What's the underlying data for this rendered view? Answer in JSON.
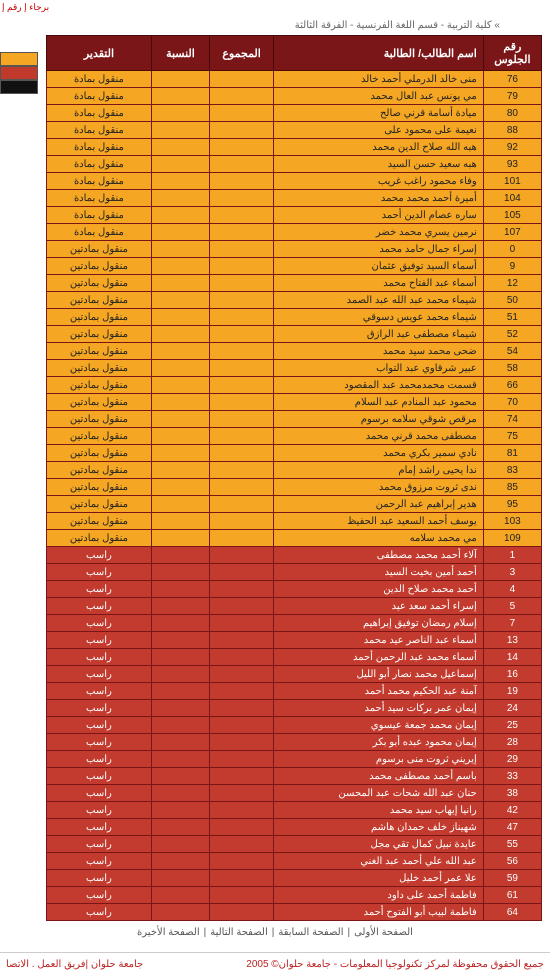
{
  "topLeft": "برجاء إ\nرقم إ",
  "breadcrumb": "» كلية التربية - قسم اللغة الفرنسية - الفرقة الثالثة",
  "headers": {
    "seat": "رقم الجلوس",
    "name": "اسم الطالب/ الطالبة",
    "total": "المجموع",
    "pct": "النسبة",
    "grade": "التقدير"
  },
  "rows": [
    {
      "c": "orange",
      "seat": "76",
      "name": "منى خالد الدرملي أحمد خالد",
      "grade": "منقول بمادة"
    },
    {
      "c": "orange",
      "seat": "79",
      "name": "مي يونس عبد العال محمد",
      "grade": "منقول بمادة"
    },
    {
      "c": "orange",
      "seat": "80",
      "name": "ميادة أسامة قرني صالح",
      "grade": "منقول بمادة"
    },
    {
      "c": "orange",
      "seat": "88",
      "name": "نعيمة على محمود على",
      "grade": "منقول بمادة"
    },
    {
      "c": "orange",
      "seat": "92",
      "name": "هبه الله صلاح الدين محمد",
      "grade": "منقول بمادة"
    },
    {
      "c": "orange",
      "seat": "93",
      "name": "هبه سعيد حسن السيد",
      "grade": "منقول بمادة"
    },
    {
      "c": "orange",
      "seat": "101",
      "name": "وفاء محمود راغب غريب",
      "grade": "منقول بمادة"
    },
    {
      "c": "orange",
      "seat": "104",
      "name": "أميرة أحمد محمد محمد",
      "grade": "منقول بمادة"
    },
    {
      "c": "orange",
      "seat": "105",
      "name": "ساره عصام الدين أحمد",
      "grade": "منقول بمادة"
    },
    {
      "c": "orange",
      "seat": "107",
      "name": "نرمين يسري محمد خضر",
      "grade": "منقول بمادة"
    },
    {
      "c": "orange",
      "seat": "0",
      "name": "إسراء جمال حامد محمد",
      "grade": "منقول بمادتين"
    },
    {
      "c": "orange",
      "seat": "9",
      "name": "أسماء السيد توفيق عثمان",
      "grade": "منقول بمادتين"
    },
    {
      "c": "orange",
      "seat": "12",
      "name": "أسماء عبد الفتاح محمد",
      "grade": "منقول بمادتين"
    },
    {
      "c": "orange",
      "seat": "50",
      "name": "شيماء محمد عبد الله عبد الصمد",
      "grade": "منقول بمادتين"
    },
    {
      "c": "orange",
      "seat": "51",
      "name": "شيماء محمد عويس دسوقي",
      "grade": "منقول بمادتين"
    },
    {
      "c": "orange",
      "seat": "52",
      "name": "شيماء مصطفى عبد الرازق",
      "grade": "منقول بمادتين"
    },
    {
      "c": "orange",
      "seat": "54",
      "name": "ضحى محمد سيد محمد",
      "grade": "منقول بمادتين"
    },
    {
      "c": "orange",
      "seat": "58",
      "name": "عبير شرقاوي عبد التواب",
      "grade": "منقول بمادتين"
    },
    {
      "c": "orange",
      "seat": "66",
      "name": "قسمت محمدمحمد عبد المقصود",
      "grade": "منقول بمادتين"
    },
    {
      "c": "orange",
      "seat": "70",
      "name": "محمود عبد المنادم عبد السلام",
      "grade": "منقول بمادتين"
    },
    {
      "c": "orange",
      "seat": "74",
      "name": "مرقص شوقي سلامه برسوم",
      "grade": "منقول بمادتين"
    },
    {
      "c": "orange",
      "seat": "75",
      "name": "مصطفى محمد قرني محمد",
      "grade": "منقول بمادتين"
    },
    {
      "c": "orange",
      "seat": "81",
      "name": "نادي سمير بكري محمد",
      "grade": "منقول بمادتين"
    },
    {
      "c": "orange",
      "seat": "83",
      "name": "ندا يحيى راشد إمام",
      "grade": "منقول بمادتين"
    },
    {
      "c": "orange",
      "seat": "85",
      "name": "ندى ثروت مرزوق محمد",
      "grade": "منقول بمادتين"
    },
    {
      "c": "orange",
      "seat": "95",
      "name": "هدير إبراهيم عبد الرحمن",
      "grade": "منقول بمادتين"
    },
    {
      "c": "orange",
      "seat": "103",
      "name": "يوسف أحمد السعيد عبد الحفيظ",
      "grade": "منقول بمادتين"
    },
    {
      "c": "orange",
      "seat": "109",
      "name": "مي محمد سلامه",
      "grade": "منقول بمادتين"
    },
    {
      "c": "red",
      "seat": "1",
      "name": "آلاء أحمد محمد مصطفى",
      "grade": "راسب"
    },
    {
      "c": "red",
      "seat": "3",
      "name": "أحمد أمين بخيت السيد",
      "grade": "راسب"
    },
    {
      "c": "red",
      "seat": "4",
      "name": "أحمد محمد صلاح الدين",
      "grade": "راسب"
    },
    {
      "c": "red",
      "seat": "5",
      "name": "إسراء أحمد سعد عيد",
      "grade": "راسب"
    },
    {
      "c": "red",
      "seat": "7",
      "name": "إسلام رمضان توفيق إبراهيم",
      "grade": "راسب"
    },
    {
      "c": "red",
      "seat": "13",
      "name": "أسماء عبد الناصر عيد محمد",
      "grade": "راسب"
    },
    {
      "c": "red",
      "seat": "14",
      "name": "أسماء محمد عبد الرحمن أحمد",
      "grade": "راسب"
    },
    {
      "c": "red",
      "seat": "16",
      "name": "إسماعيل محمد نصار أبو الليل",
      "grade": "راسب"
    },
    {
      "c": "red",
      "seat": "19",
      "name": "آمنة عبد الحكيم محمد أحمد",
      "grade": "راسب"
    },
    {
      "c": "red",
      "seat": "24",
      "name": "إيمان عمر بركات سيد أحمد",
      "grade": "راسب"
    },
    {
      "c": "red",
      "seat": "25",
      "name": "إيمان محمد جمعة عيسوي",
      "grade": "راسب"
    },
    {
      "c": "red",
      "seat": "28",
      "name": "إيمان محمود عبده أبو بكر",
      "grade": "راسب"
    },
    {
      "c": "red",
      "seat": "29",
      "name": "إيريني ثروت منى برسوم",
      "grade": "راسب"
    },
    {
      "c": "red",
      "seat": "33",
      "name": "باسم أحمد مصطفى محمد",
      "grade": "راسب"
    },
    {
      "c": "red",
      "seat": "38",
      "name": "حنان عبد الله شحات عبد المحسن",
      "grade": "راسب"
    },
    {
      "c": "red",
      "seat": "42",
      "name": "رانيا إيهاب سيد محمد",
      "grade": "راسب"
    },
    {
      "c": "red",
      "seat": "47",
      "name": "شهيناز خلف حمدان هاشم",
      "grade": "راسب"
    },
    {
      "c": "red",
      "seat": "55",
      "name": "عايدة نبيل كمال تقي مجل",
      "grade": "راسب"
    },
    {
      "c": "red",
      "seat": "56",
      "name": "عبد الله علي أحمد عبد الغني",
      "grade": "راسب"
    },
    {
      "c": "red",
      "seat": "59",
      "name": "علا عمر أحمد خليل",
      "grade": "راسب"
    },
    {
      "c": "red",
      "seat": "61",
      "name": "فاطمة أحمد على داود",
      "grade": "راسب"
    },
    {
      "c": "red",
      "seat": "64",
      "name": "فاطمة لبيب أبو الفتوح أحمد",
      "grade": "راسب"
    }
  ],
  "pagination": [
    "الصفحة الأولى",
    "|",
    "الصفحة السابقة",
    "|",
    "الصفحة التالية",
    "|",
    "الصفحة الأخيرة"
  ],
  "footer": {
    "right": "جميع الحقوق محفوظة لمركز تكنولوجيا المعلومات - جامعة حلوان© 2005",
    "left": "جامعة حلوان |فريق العمل . الاتصا"
  }
}
